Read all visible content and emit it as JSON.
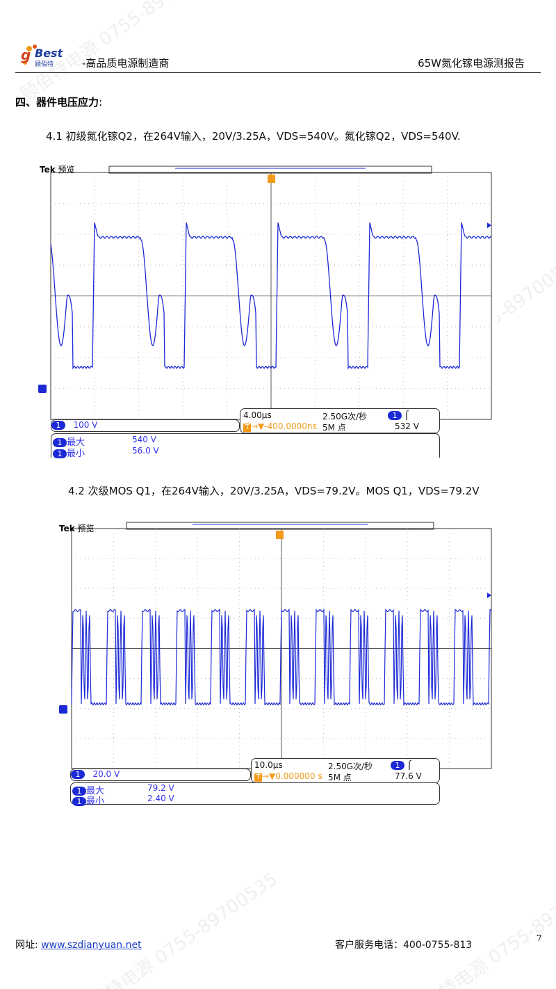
{
  "header": {
    "logo_text": "goBest 顾佰特",
    "slogan": "-高品质电源制造商",
    "report_title": "65W氮化镓电源测报告"
  },
  "section": {
    "title": "四、器件电压应力",
    "colon": ":"
  },
  "captions": [
    "4.1 初级氮化镓Q2，在264V输入，20V/3.25A，VDS=540V。氮化镓Q2，VDS=540V.",
    "4.2 次级MOS Q1，在264V输入，20V/3.25A，VDS=79.2V。MOS Q1，VDS=79.2V"
  ],
  "scopes": [
    {
      "brand": "Tek",
      "mode": "预览",
      "channel": "1",
      "scale": "100 V",
      "timebase": "4.00µs",
      "sample_rate": "2.50G次/秒",
      "trigger_pos": "-400.0000ns",
      "record": "5M 点",
      "trigger_level": "532 V",
      "max_label": "最大",
      "max_value": "540 V",
      "min_label": "最小",
      "min_value": "56.0 V"
    },
    {
      "brand": "Tek",
      "mode": "预览",
      "channel": "1",
      "scale": "20.0 V",
      "timebase": "10.0µs",
      "sample_rate": "2.50G次/秒",
      "trigger_pos": "0.000000 s",
      "record": "5M 点",
      "trigger_level": "77.6 V",
      "max_label": "最大",
      "max_value": "79.2 V",
      "min_label": "最小",
      "min_value": "2.40 V"
    }
  ],
  "footer": {
    "site_label": "网址:",
    "site_link": "www.szdianyuan.net",
    "service_label": "客户服务电话：",
    "service_phone": "400-0755-813",
    "page_number": "7"
  },
  "watermark": "顾佰特电源 0755-89700535",
  "colors": {
    "trace": "#1c2ad6",
    "trigger": "#f39a1a"
  }
}
